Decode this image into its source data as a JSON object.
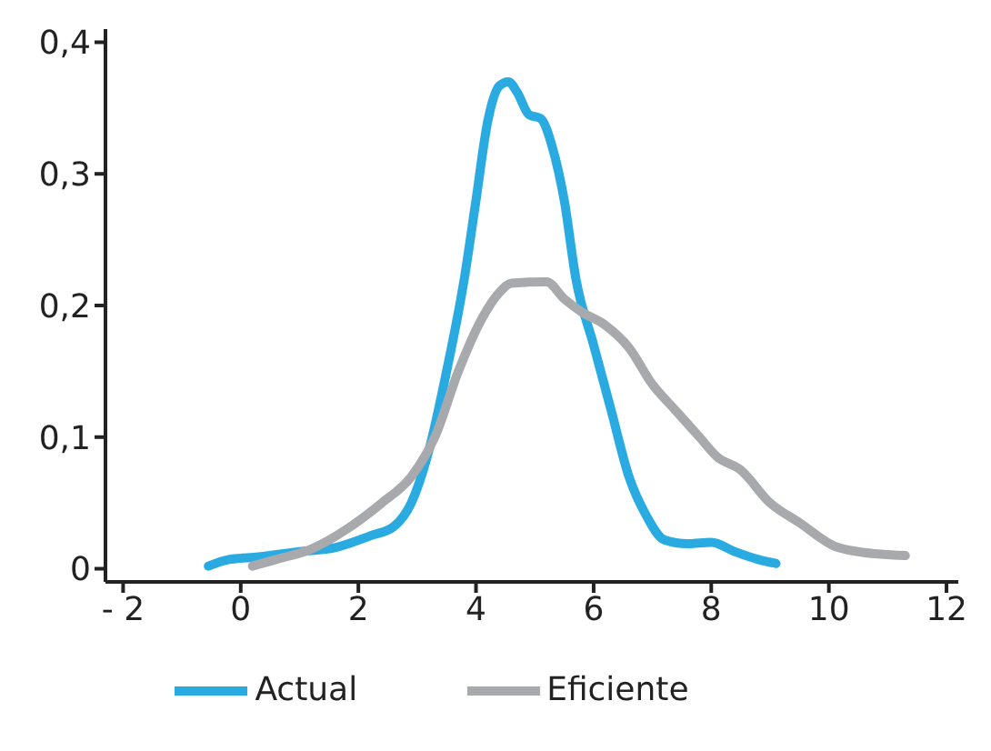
{
  "chart_data": {
    "type": "line",
    "xlim": [
      -2.3,
      12.2
    ],
    "xticks": [
      {
        "value": -2,
        "label": "- 2"
      },
      0,
      2,
      4,
      6,
      8,
      10,
      12
    ],
    "ylim": [
      -0.01,
      0.41
    ],
    "yticks": [
      0,
      {
        "value": 0.1,
        "label": "0,1"
      },
      {
        "value": 0.2,
        "label": "0,2"
      },
      {
        "value": 0.3,
        "label": "0,3"
      },
      {
        "value": 0.4,
        "label": "0,4"
      }
    ],
    "grid": false,
    "legend": "bottom",
    "marker": "none",
    "line_style": "solid",
    "series": [
      {
        "name": "Actual",
        "color": "#29abe2",
        "x": [
          -0.55,
          -0.2,
          0.3,
          1,
          1.6,
          2.2,
          2.6,
          2.9,
          3.2,
          3.5,
          3.8,
          4.0,
          4.2,
          4.4,
          4.55,
          4.7,
          4.9,
          5.1,
          5.3,
          5.5,
          5.7,
          6.0,
          6.3,
          6.6,
          6.9,
          7.2,
          7.6,
          8,
          8.4,
          8.8,
          9.1
        ],
        "values": [
          0.002,
          0.007,
          0.009,
          0.013,
          0.016,
          0.025,
          0.032,
          0.05,
          0.09,
          0.15,
          0.22,
          0.28,
          0.34,
          0.367,
          0.37,
          0.362,
          0.345,
          0.342,
          0.32,
          0.28,
          0.22,
          0.17,
          0.12,
          0.07,
          0.04,
          0.022,
          0.019,
          0.02,
          0.013,
          0.007,
          0.004
        ]
      },
      {
        "name": "Eficiente",
        "color": "#a7a9ac",
        "x": [
          0.2,
          0.6,
          1.2,
          1.8,
          2.4,
          2.9,
          3.3,
          3.7,
          4.1,
          4.4,
          4.6,
          5.2,
          5.5,
          5.8,
          6.2,
          6.6,
          7,
          7.4,
          7.8,
          8.1,
          8.5,
          9,
          9.5,
          10.1,
          10.5,
          11.3
        ],
        "values": [
          0.002,
          0.007,
          0.015,
          0.03,
          0.05,
          0.07,
          0.1,
          0.15,
          0.19,
          0.21,
          0.217,
          0.218,
          0.205,
          0.195,
          0.185,
          0.168,
          0.14,
          0.12,
          0.1,
          0.085,
          0.075,
          0.05,
          0.035,
          0.017,
          0.013,
          0.01
        ]
      }
    ]
  }
}
